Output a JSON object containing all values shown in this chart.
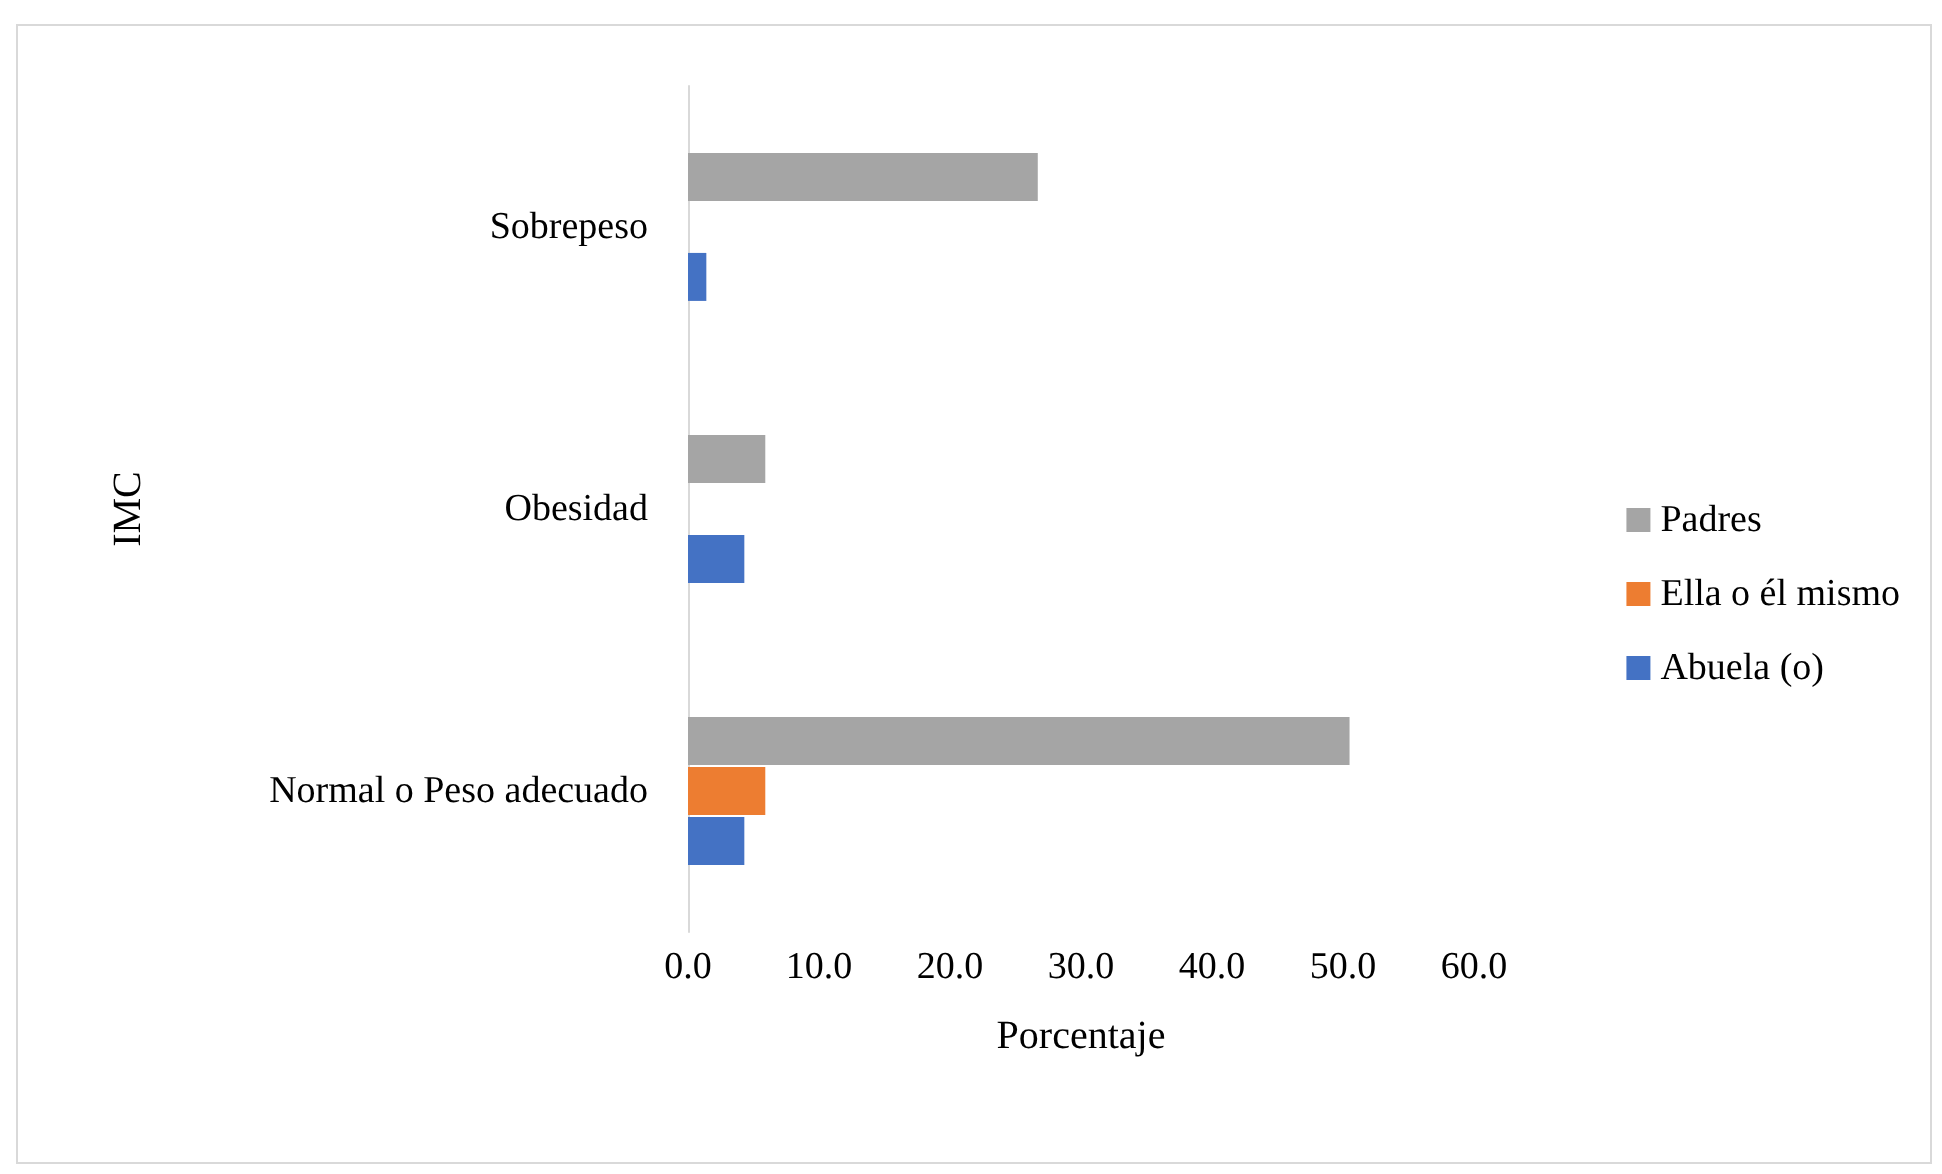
{
  "chart_data": {
    "type": "bar",
    "orientation": "horizontal",
    "xlabel": "Porcentaje",
    "ylabel": "IMC",
    "categories": [
      "Sobrepeso",
      "Obesidad",
      "Normal o Peso adecuado"
    ],
    "series": [
      {
        "name": "Padres",
        "color": "#a5a5a5",
        "values": [
          26.7,
          5.9,
          50.5
        ]
      },
      {
        "name": "Ella o él mismo",
        "color": "#ed7d31",
        "values": [
          null,
          null,
          5.9
        ]
      },
      {
        "name": "Abuela (o)",
        "color": "#4472c4",
        "values": [
          1.4,
          4.3,
          4.3
        ]
      }
    ],
    "xlim": [
      0,
      60
    ],
    "xticks": [
      {
        "value": 0,
        "label": "0.0"
      },
      {
        "value": 10,
        "label": "10.0"
      },
      {
        "value": 20,
        "label": "20.0"
      },
      {
        "value": 30,
        "label": "30.0"
      },
      {
        "value": 40,
        "label": "40.0"
      },
      {
        "value": 50,
        "label": "50.0"
      },
      {
        "value": 60,
        "label": "60.0"
      }
    ],
    "grid": false,
    "legend": "right"
  }
}
